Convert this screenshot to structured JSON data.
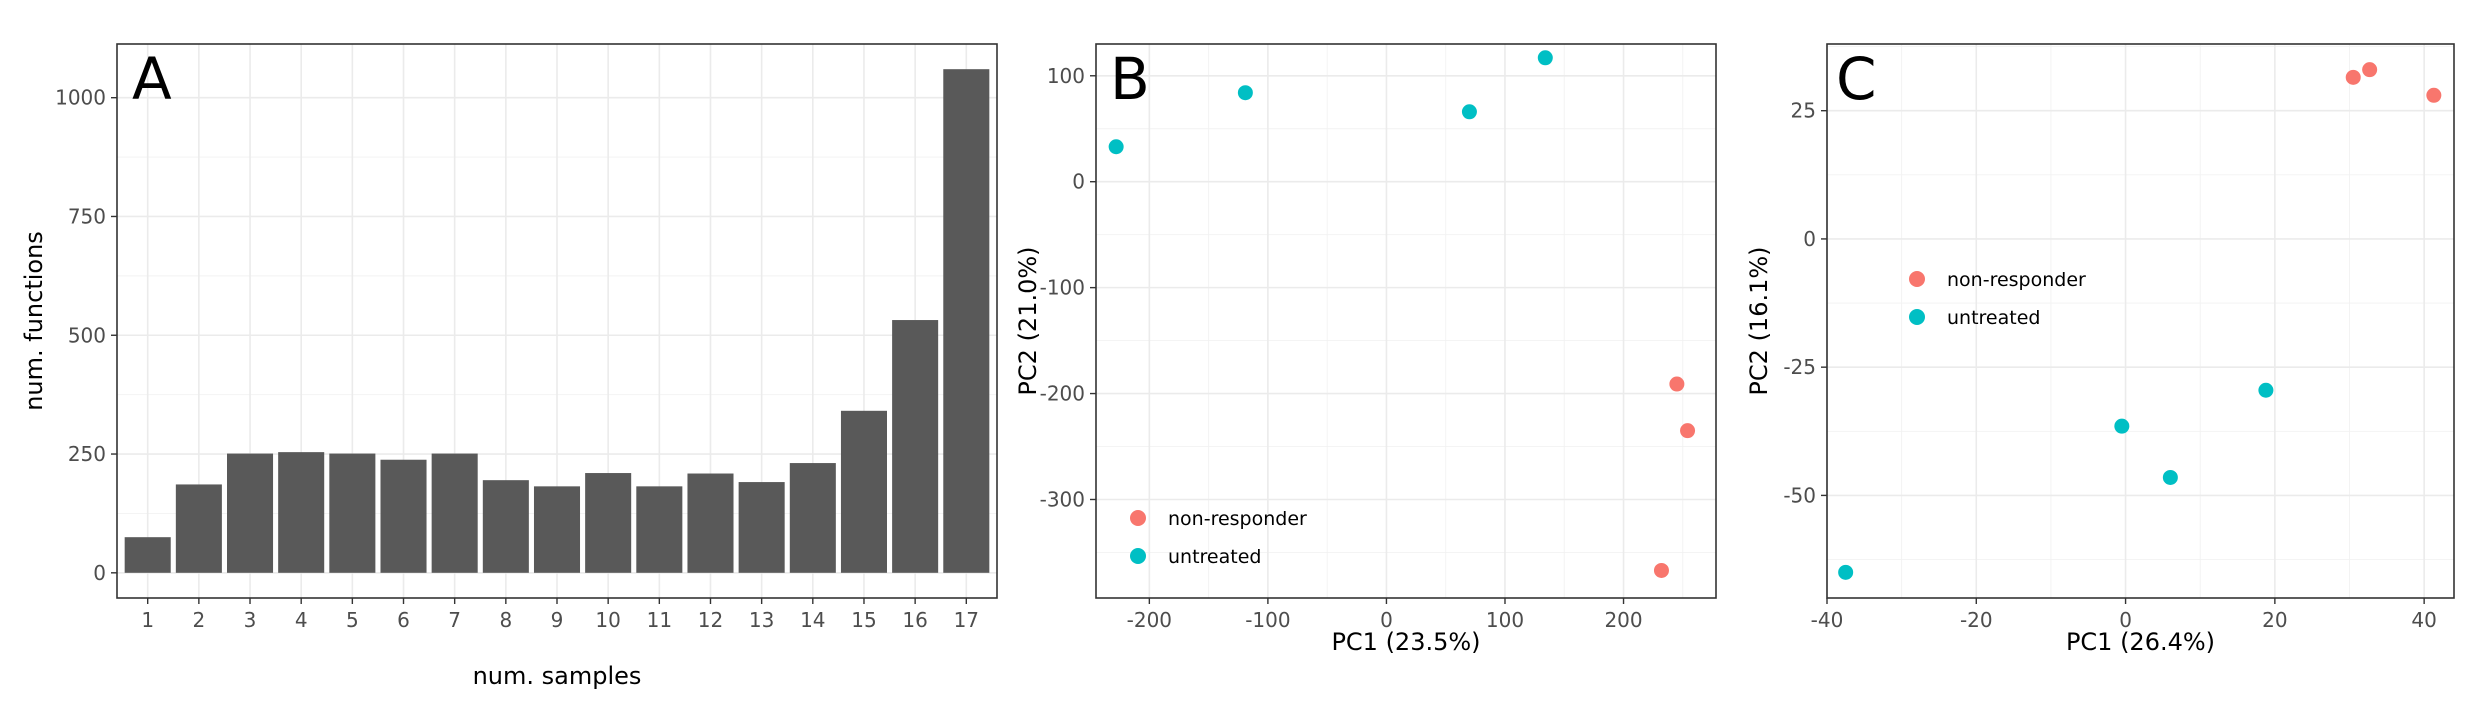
{
  "panels": [
    {
      "letter": "A",
      "chart_data": {
        "type": "bar",
        "categories": [
          "1",
          "2",
          "3",
          "4",
          "5",
          "6",
          "7",
          "8",
          "9",
          "10",
          "11",
          "12",
          "13",
          "14",
          "15",
          "16",
          "17"
        ],
        "values": [
          75,
          186,
          251,
          254,
          251,
          238,
          251,
          195,
          182,
          210,
          182,
          209,
          191,
          231,
          341,
          532,
          1060
        ],
        "xlabel": "num. samples",
        "ylabel": "num. functions",
        "ylim": [
          -53,
          1113
        ],
        "yticks": [
          0,
          250,
          500,
          750,
          1000
        ],
        "ytick_labels": [
          "0",
          "250",
          "500",
          "750",
          "1000"
        ],
        "bar_color": "#595959",
        "grid": true
      }
    },
    {
      "letter": "B",
      "chart_data": {
        "type": "scatter",
        "xlabel": "PC1 (23.5%)",
        "ylabel": "PC2 (21.0%)",
        "xlim": [
          -245,
          278
        ],
        "ylim": [
          -393,
          130
        ],
        "xticks": [
          -200,
          -100,
          0,
          100,
          200
        ],
        "xtick_labels": [
          "-200",
          "-100",
          "0",
          "100",
          "200"
        ],
        "yticks": [
          100,
          0,
          -100,
          -200,
          -300
        ],
        "ytick_labels": [
          "100",
          "0",
          "-100",
          "-200",
          "-300"
        ],
        "series": [
          {
            "name": "non-responder",
            "color": "#F8766D",
            "points": [
              [
                245,
                -191
              ],
              [
                254,
                -235
              ],
              [
                232,
                -367
              ]
            ]
          },
          {
            "name": "untreated",
            "color": "#00BFC4",
            "points": [
              [
                -228,
                33
              ],
              [
                -119,
                84
              ],
              [
                70,
                66
              ],
              [
                134,
                117
              ]
            ]
          }
        ],
        "legend_position": "bottom-left",
        "grid": true
      }
    },
    {
      "letter": "C",
      "chart_data": {
        "type": "scatter",
        "xlabel": "PC1 (26.4%)",
        "ylabel": "PC2 (16.1%)",
        "xlim": [
          -40,
          44
        ],
        "ylim": [
          -70,
          38
        ],
        "xticks": [
          -40,
          -20,
          0,
          20,
          40
        ],
        "xtick_labels": [
          "-40",
          "-20",
          "0",
          "20",
          "40"
        ],
        "yticks": [
          25,
          0,
          -25,
          -50
        ],
        "ytick_labels": [
          "25",
          "0",
          "-25",
          "-50"
        ],
        "series": [
          {
            "name": "non-responder",
            "color": "#F8766D",
            "points": [
              [
                30.5,
                31.5
              ],
              [
                32.7,
                33
              ],
              [
                41.3,
                28
              ]
            ]
          },
          {
            "name": "untreated",
            "color": "#00BFC4",
            "points": [
              [
                -37.5,
                -65
              ],
              [
                -0.5,
                -36.5
              ],
              [
                6,
                -46.5
              ],
              [
                18.8,
                -29.5
              ]
            ]
          }
        ],
        "legend_position": "upper-left",
        "grid": true
      }
    }
  ]
}
